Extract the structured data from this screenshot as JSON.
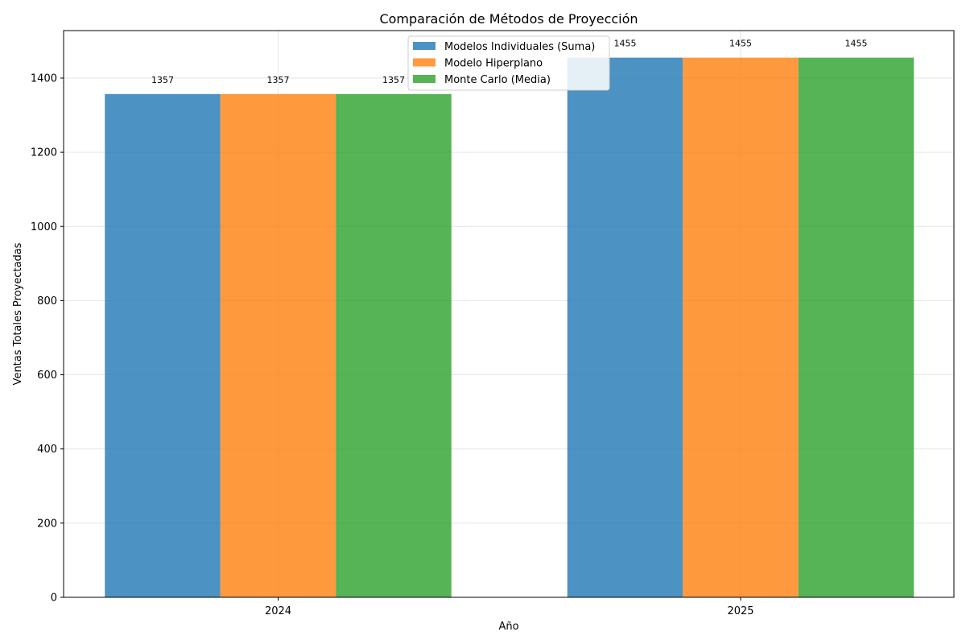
{
  "chart_data": {
    "type": "bar",
    "title": "Comparación de Métodos de Proyección",
    "xlabel": "Año",
    "ylabel": "Ventas Totales Proyectadas",
    "categories": [
      "2024",
      "2025"
    ],
    "series": [
      {
        "name": "Modelos Individuales (Suma)",
        "values": [
          1357,
          1455
        ],
        "color": "#1f77b4"
      },
      {
        "name": "Modelo Hiperplano",
        "values": [
          1357,
          1455
        ],
        "color": "#ff7f0e"
      },
      {
        "name": "Monte Carlo (Media)",
        "values": [
          1357,
          1455
        ],
        "color": "#2ca02c"
      }
    ],
    "data_labels": [
      [
        "1357",
        "1455"
      ],
      [
        "1357",
        "1455"
      ],
      [
        "1357",
        "1455"
      ]
    ],
    "ylim": [
      0,
      1528
    ],
    "yticks": [
      0,
      200,
      400,
      600,
      800,
      1000,
      1200,
      1400
    ],
    "grid": true,
    "legend_position": "top-center"
  }
}
